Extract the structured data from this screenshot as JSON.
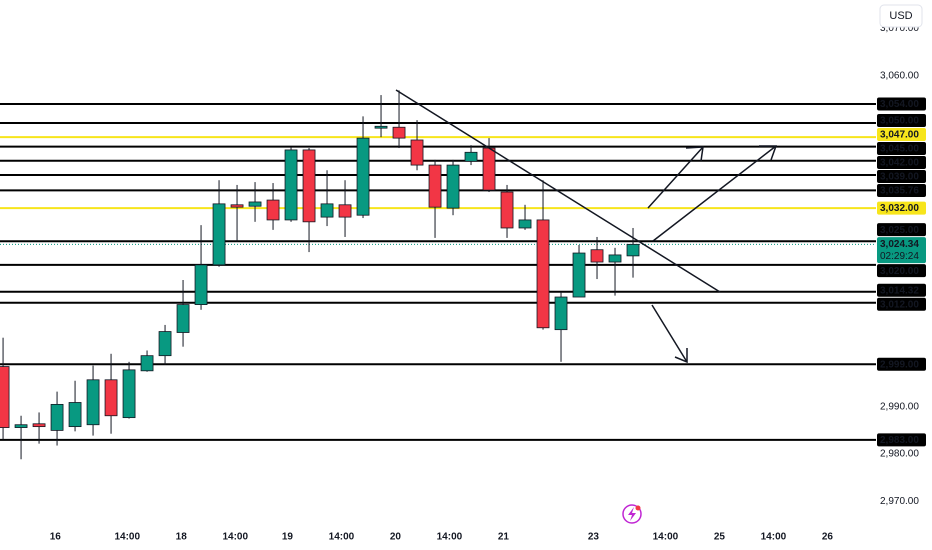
{
  "chart_data": {
    "type": "candlestick",
    "currency": "USD",
    "up_color": "#089981",
    "down_color": "#f23645",
    "open": [
      2998.5,
      2985.6,
      2986.4,
      2985.0,
      2985.8,
      2986.2,
      2995.7,
      2987.7,
      2997.6,
      3000.8,
      3005.7,
      3011.6,
      3020.0,
      3032.7,
      3032.4,
      3033.7,
      3029.5,
      3044.3,
      3030.1,
      3032.7,
      3030.5,
      3048.9,
      3049.1,
      3046.4,
      3041.1,
      3032.0,
      3041.9,
      3044.7,
      3035.4,
      3027.8,
      3029.5,
      3006.3,
      3013.2,
      3023.2,
      3020.6,
      3021.9
    ],
    "high": [
      3004.6,
      2988.1,
      2988.8,
      2993.2,
      2995.5,
      2998.7,
      3001.2,
      2999.5,
      3001.9,
      3007.3,
      3016.8,
      3028.4,
      3037.9,
      3036.9,
      3037.5,
      3037.3,
      3044.9,
      3044.7,
      3040.0,
      3037.9,
      3051.4,
      3055.9,
      3056.9,
      3050.6,
      3042.2,
      3042.2,
      3045.3,
      3046.8,
      3036.9,
      3032.7,
      3037.9,
      3014.3,
      3024.2,
      3025.9,
      3023.6,
      3027.8
    ],
    "low": [
      2983.1,
      2978.9,
      2982.2,
      2981.8,
      2984.8,
      2983.9,
      2984.3,
      2987.5,
      2997.4,
      2998.9,
      3002.7,
      3010.5,
      3019.6,
      3024.9,
      3029.1,
      3027.4,
      3029.1,
      3022.7,
      3028.2,
      3025.9,
      3029.9,
      3047.0,
      3044.7,
      3040.0,
      3025.7,
      3030.5,
      3041.1,
      3035.4,
      3025.7,
      3027.4,
      3006.3,
      2999.5,
      3013.2,
      3017.0,
      3013.5,
      3017.3
    ],
    "close": [
      2985.6,
      2986.2,
      2985.8,
      2990.5,
      2990.9,
      2995.7,
      2988.1,
      2997.8,
      3000.8,
      3005.9,
      3011.6,
      3020.0,
      3032.9,
      3032.2,
      3033.3,
      3029.5,
      3044.3,
      3029.1,
      3032.9,
      3030.1,
      3046.8,
      3049.3,
      3046.8,
      3041.1,
      3032.2,
      3041.1,
      3043.8,
      3035.8,
      3027.8,
      3029.5,
      3006.7,
      3013.2,
      3022.5,
      3020.6,
      3022.1,
      3024.34
    ],
    "xlim": [
      -0.17,
      48.5
    ],
    "xticks": [
      {
        "value": 2.9,
        "label": "16"
      },
      {
        "value": 6.9,
        "label": "14:00"
      },
      {
        "value": 9.9,
        "label": "18"
      },
      {
        "value": 12.9,
        "label": "14:00"
      },
      {
        "value": 15.8,
        "label": "19"
      },
      {
        "value": 18.8,
        "label": "14:00"
      },
      {
        "value": 21.8,
        "label": "20"
      },
      {
        "value": 24.8,
        "label": "14:00"
      },
      {
        "value": 27.8,
        "label": "21"
      },
      {
        "value": 32.8,
        "label": "23"
      },
      {
        "value": 36.8,
        "label": "14:00"
      },
      {
        "value": 39.8,
        "label": "25"
      },
      {
        "value": 42.8,
        "label": "14:00"
      },
      {
        "value": 45.8,
        "label": "26"
      }
    ],
    "ylim": [
      2965,
      3076
    ],
    "yticks": [
      {
        "value": 2970,
        "label": "2,970.00"
      },
      {
        "value": 2980,
        "label": "2,980.00"
      },
      {
        "value": 2990,
        "label": "2,990.00"
      },
      {
        "value": 3060,
        "label": "3,060.00"
      },
      {
        "value": 3070,
        "label": "3,070.00"
      }
    ],
    "levels": [
      {
        "value": 3054,
        "label": "3,054.00",
        "color": "#000000"
      },
      {
        "value": 3050,
        "label": "3,050.00",
        "color": "#000000"
      },
      {
        "value": 3047,
        "label": "3,047.00",
        "color": "#f7e51b"
      },
      {
        "value": 3045,
        "label": "3,045.00",
        "color": "#000000"
      },
      {
        "value": 3042,
        "label": "3,042.00",
        "color": "#000000"
      },
      {
        "value": 3039,
        "label": "3,039.00",
        "color": "#000000"
      },
      {
        "value": 3035.76,
        "label": "3,035.76",
        "color": "#000000"
      },
      {
        "value": 3032,
        "label": "3,032.00",
        "color": "#f7e51b"
      },
      {
        "value": 3025,
        "label": "3,025.00",
        "color": "#000000"
      },
      {
        "value": 3020,
        "label": "3,020.00",
        "color": "#000000"
      },
      {
        "value": 3014.32,
        "label": "3,014.32",
        "color": "#000000"
      },
      {
        "value": 3012,
        "label": "3,012.00",
        "color": "#000000"
      },
      {
        "value": 2999,
        "label": "2,999.00",
        "color": "#000000"
      },
      {
        "value": 2983,
        "label": "2,983.00",
        "color": "#000000"
      }
    ],
    "last_price": {
      "value": 3024.34,
      "label": "3,024.34",
      "countdown": "02:29:24",
      "color": "#089981"
    }
  }
}
